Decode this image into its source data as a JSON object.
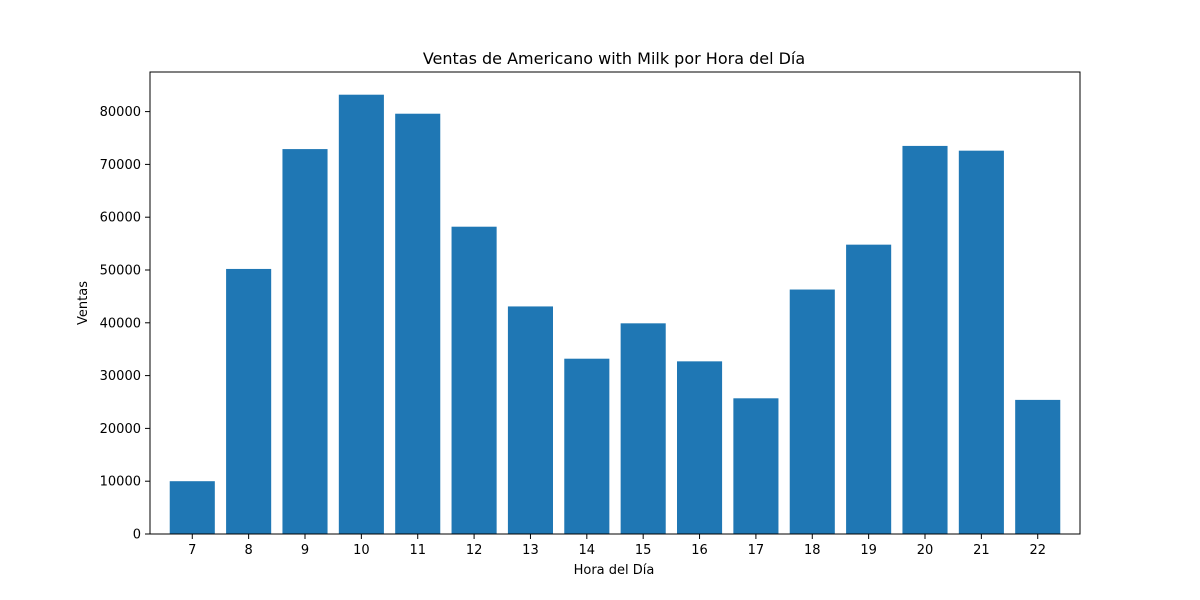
{
  "chart_data": {
    "type": "bar",
    "title": "Ventas de Americano with Milk por Hora del Día",
    "xlabel": "Hora del Día",
    "ylabel": "Ventas",
    "categories": [
      "7",
      "8",
      "9",
      "10",
      "11",
      "12",
      "13",
      "14",
      "15",
      "16",
      "17",
      "18",
      "19",
      "20",
      "21",
      "22"
    ],
    "values": [
      10000,
      50200,
      72900,
      83200,
      79600,
      58200,
      43100,
      33200,
      39900,
      32700,
      25700,
      46300,
      54800,
      73500,
      72600,
      25400
    ],
    "ylim": [
      0,
      87500
    ],
    "yticks": [
      0,
      10000,
      20000,
      30000,
      40000,
      50000,
      60000,
      70000,
      80000
    ],
    "ytick_labels": [
      "0",
      "10000",
      "20000",
      "30000",
      "40000",
      "50000",
      "60000",
      "70000",
      "80000"
    ],
    "grid": false,
    "bar_color": "#1f77b4"
  }
}
